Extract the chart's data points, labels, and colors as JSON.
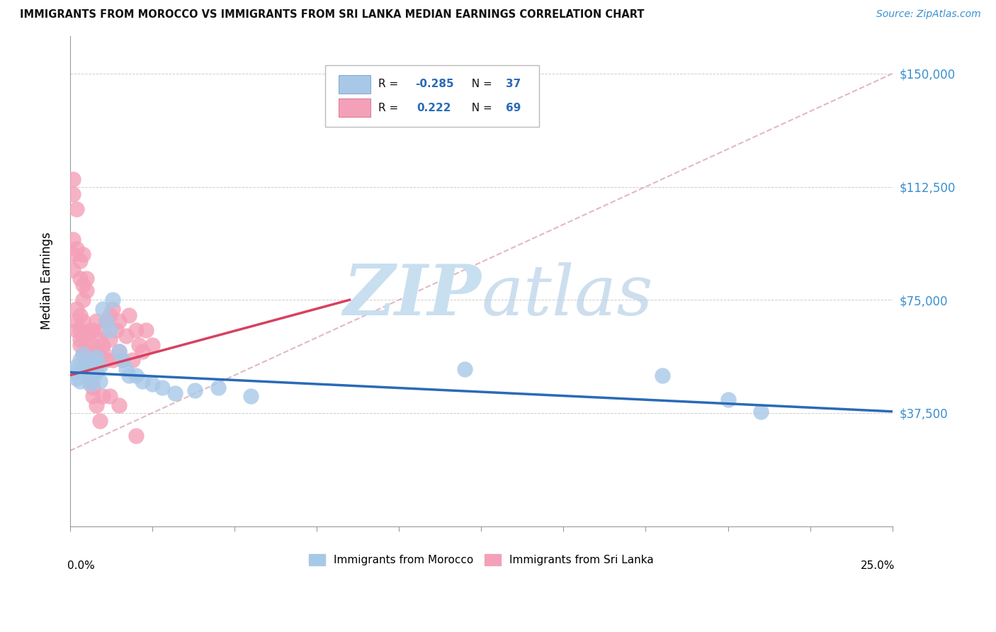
{
  "title": "IMMIGRANTS FROM MOROCCO VS IMMIGRANTS FROM SRI LANKA MEDIAN EARNINGS CORRELATION CHART",
  "source": "Source: ZipAtlas.com",
  "ylabel": "Median Earnings",
  "yticks": [
    0,
    37500,
    75000,
    112500,
    150000
  ],
  "ytick_labels": [
    "",
    "$37,500",
    "$75,000",
    "$112,500",
    "$150,000"
  ],
  "xlim": [
    0.0,
    0.25
  ],
  "ylim": [
    0,
    162500
  ],
  "morocco_color": "#a8c8e8",
  "srilanka_color": "#f4a0b8",
  "morocco_line_color": "#2a6ab8",
  "srilanka_line_color": "#d84060",
  "dashed_line_color": "#e0b0c0",
  "R_morocco": -0.285,
  "N_morocco": 37,
  "R_srilanka": 0.222,
  "N_srilanka": 69,
  "morocco_x": [
    0.001,
    0.002,
    0.002,
    0.003,
    0.003,
    0.004,
    0.004,
    0.005,
    0.005,
    0.006,
    0.006,
    0.007,
    0.007,
    0.008,
    0.008,
    0.009,
    0.009,
    0.01,
    0.011,
    0.012,
    0.013,
    0.015,
    0.016,
    0.017,
    0.018,
    0.02,
    0.022,
    0.025,
    0.028,
    0.032,
    0.038,
    0.045,
    0.055,
    0.12,
    0.18,
    0.2,
    0.21
  ],
  "morocco_y": [
    51000,
    53000,
    49000,
    55000,
    48000,
    52000,
    57000,
    50000,
    54000,
    53000,
    47000,
    55000,
    49000,
    56000,
    51000,
    53000,
    48000,
    72000,
    68000,
    65000,
    75000,
    58000,
    55000,
    52000,
    50000,
    50000,
    48000,
    47000,
    46000,
    44000,
    45000,
    46000,
    43000,
    52000,
    50000,
    42000,
    38000
  ],
  "srilanka_x": [
    0.001,
    0.001,
    0.001,
    0.002,
    0.002,
    0.002,
    0.003,
    0.003,
    0.003,
    0.003,
    0.004,
    0.004,
    0.004,
    0.004,
    0.005,
    0.005,
    0.005,
    0.005,
    0.006,
    0.006,
    0.006,
    0.007,
    0.007,
    0.007,
    0.008,
    0.008,
    0.008,
    0.009,
    0.009,
    0.01,
    0.01,
    0.01,
    0.011,
    0.011,
    0.012,
    0.012,
    0.013,
    0.013,
    0.014,
    0.015,
    0.015,
    0.016,
    0.017,
    0.018,
    0.019,
    0.02,
    0.021,
    0.022,
    0.023,
    0.025,
    0.001,
    0.001,
    0.002,
    0.002,
    0.003,
    0.003,
    0.004,
    0.004,
    0.005,
    0.005,
    0.006,
    0.007,
    0.007,
    0.008,
    0.009,
    0.01,
    0.012,
    0.015,
    0.02
  ],
  "srilanka_y": [
    90000,
    85000,
    95000,
    65000,
    72000,
    68000,
    60000,
    65000,
    70000,
    62000,
    57000,
    63000,
    68000,
    75000,
    54000,
    60000,
    58000,
    64000,
    57000,
    65000,
    53000,
    60000,
    56000,
    65000,
    58000,
    68000,
    52000,
    62000,
    56000,
    65000,
    58000,
    60000,
    68000,
    55000,
    62000,
    70000,
    55000,
    72000,
    65000,
    58000,
    68000,
    55000,
    63000,
    70000,
    55000,
    65000,
    60000,
    58000,
    65000,
    60000,
    110000,
    115000,
    105000,
    92000,
    88000,
    82000,
    80000,
    90000,
    78000,
    82000,
    48000,
    43000,
    46000,
    40000,
    35000,
    43000,
    43000,
    40000,
    30000
  ],
  "morocco_line_x": [
    0.0,
    0.25
  ],
  "morocco_line_y": [
    51000,
    38000
  ],
  "srilanka_line_x": [
    0.0,
    0.085
  ],
  "srilanka_line_y": [
    50000,
    75000
  ],
  "dashed_line_x": [
    0.0,
    0.25
  ],
  "dashed_line_y": [
    25000,
    150000
  ]
}
